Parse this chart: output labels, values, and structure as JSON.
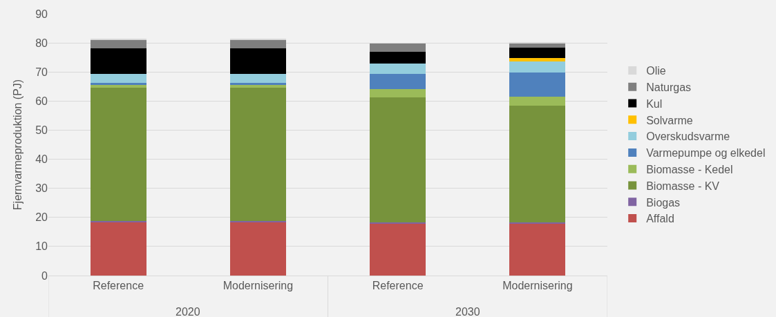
{
  "chart_data": {
    "type": "bar",
    "stacked": true,
    "ylabel": "Fjernvarmeproduktion (PJ)",
    "categories": [
      "Reference",
      "Modernisering",
      "Reference",
      "Modernisering"
    ],
    "annotations": [
      "2020",
      "2030"
    ],
    "ylim": [
      0,
      90
    ],
    "yticks": [
      0,
      10,
      20,
      30,
      40,
      50,
      60,
      70,
      80,
      90
    ],
    "grid": "y",
    "legend": "right",
    "series": [
      {
        "name": "Affald",
        "color": "#c0504d",
        "values": [
          18.4,
          18.4,
          18.0,
          18.0
        ]
      },
      {
        "name": "Biogas",
        "color": "#8064a2",
        "values": [
          0.4,
          0.4,
          0.4,
          0.4
        ]
      },
      {
        "name": "Biomasse - KV",
        "color": "#77933c",
        "values": [
          45.8,
          45.8,
          42.9,
          39.9
        ]
      },
      {
        "name": "Biomasse - Kedel",
        "color": "#9bbb59",
        "values": [
          1.0,
          1.0,
          2.9,
          3.1
        ]
      },
      {
        "name": "Varmepumpe og elkedel",
        "color": "#4f81bd",
        "values": [
          0.7,
          0.7,
          5.2,
          8.4
        ]
      },
      {
        "name": "Overskudsvarme",
        "color": "#93cddd",
        "values": [
          3.0,
          3.0,
          3.6,
          3.7
        ]
      },
      {
        "name": "Solvarme",
        "color": "#ffc000",
        "values": [
          0,
          0,
          0,
          1.3
        ]
      },
      {
        "name": "Kul",
        "color": "#000000",
        "values": [
          8.9,
          8.9,
          3.9,
          3.5
        ]
      },
      {
        "name": "Naturgas",
        "color": "#7f7f7f",
        "values": [
          2.8,
          2.8,
          2.9,
          1.5
        ]
      },
      {
        "name": "Olie",
        "color": "#d9d9d9",
        "values": [
          0.3,
          0.3,
          0.2,
          0.3
        ]
      }
    ]
  }
}
